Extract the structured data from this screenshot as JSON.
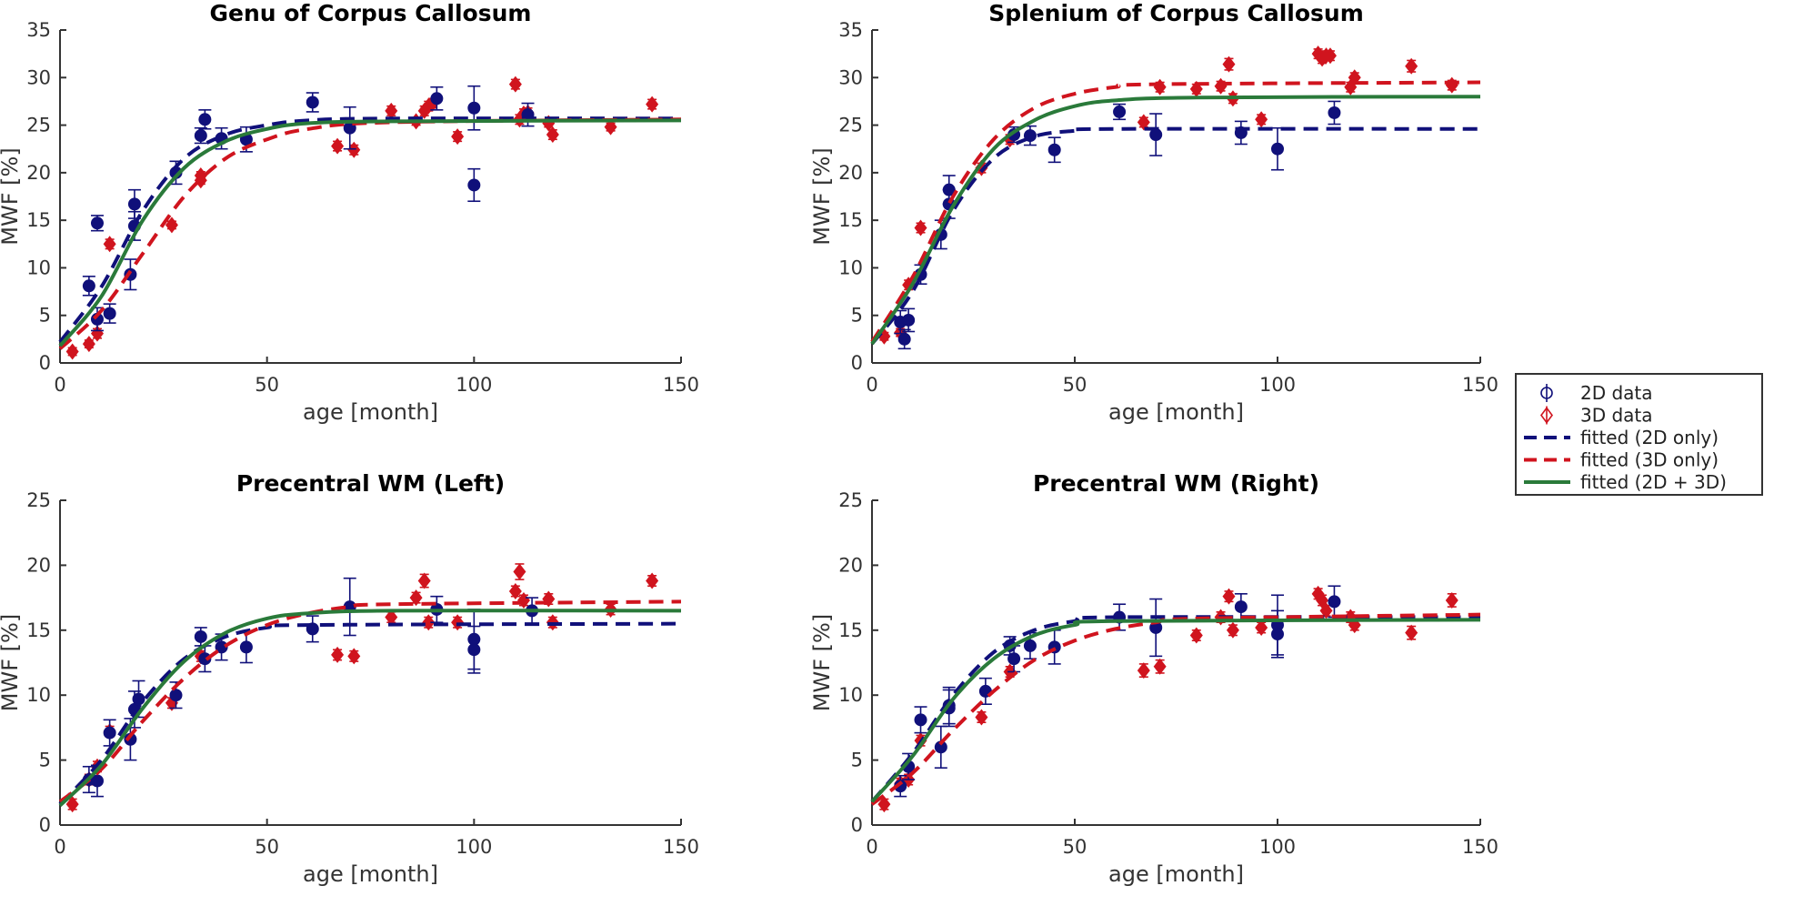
{
  "colors": {
    "data_2d": "#10107a",
    "data_3d": "#d0141e",
    "fit_2d": "#10107a",
    "fit_3d": "#d0141e",
    "fit_both": "#2a7a3a"
  },
  "legend": {
    "placement": "right",
    "entries": [
      "2D data",
      "3D data",
      "fitted (2D only)",
      "fitted (3D only)",
      "fitted (2D + 3D)"
    ]
  },
  "chart_data": [
    {
      "type": "scatter",
      "title": "Genu of Corpus Callosum",
      "xlabel": "age [month]",
      "ylabel": "MWF [%]",
      "xlim": [
        0,
        150
      ],
      "ylim": [
        0,
        35
      ],
      "xticks": [
        "0",
        "50",
        "100",
        "150"
      ],
      "yticks": [
        "0",
        "5",
        "10",
        "15",
        "20",
        "25",
        "30",
        "35"
      ],
      "grid": false,
      "data_2d": [
        [
          7,
          8.1,
          1
        ],
        [
          9,
          14.7,
          0.8
        ],
        [
          9,
          4.6,
          1.2
        ],
        [
          12,
          5.2,
          1
        ],
        [
          17,
          9.3,
          1.6
        ],
        [
          18,
          16.7,
          1.5
        ],
        [
          18,
          14.4,
          1.5
        ],
        [
          28,
          20,
          1.2
        ],
        [
          34,
          23.9,
          0.8
        ],
        [
          35,
          25.6,
          1
        ],
        [
          39,
          23.6,
          1.1
        ],
        [
          45,
          23.5,
          1.3
        ],
        [
          61,
          27.4,
          1
        ],
        [
          70,
          24.7,
          2.2
        ],
        [
          91,
          27.8,
          1.2
        ],
        [
          100,
          26.8,
          2.3
        ],
        [
          100,
          18.7,
          1.7
        ],
        [
          113,
          26.1,
          1.2
        ]
      ],
      "data_3d": [
        [
          3,
          1.2,
          0.4
        ],
        [
          7,
          2,
          0.4
        ],
        [
          9,
          3.1,
          0.5
        ],
        [
          12,
          12.5,
          0.5
        ],
        [
          27,
          14.5,
          0.4
        ],
        [
          34,
          19.2,
          0.4
        ],
        [
          34,
          19.7,
          0.4
        ],
        [
          67,
          22.8,
          0.5
        ],
        [
          71,
          22.4,
          0.5
        ],
        [
          80,
          26.5,
          0.5
        ],
        [
          86,
          25.4,
          0.4
        ],
        [
          88,
          26.5,
          0.5
        ],
        [
          89,
          27,
          0.5
        ],
        [
          90,
          27.3,
          0.5
        ],
        [
          96,
          23.8,
          0.5
        ],
        [
          110,
          29.3,
          0.5
        ],
        [
          111,
          25.6,
          0.5
        ],
        [
          112,
          26.2,
          0.5
        ],
        [
          113,
          26.3,
          0.5
        ],
        [
          118,
          25.2,
          0.4
        ],
        [
          119,
          24,
          0.5
        ],
        [
          133,
          24.8,
          0.4
        ],
        [
          143,
          27.2,
          0.5
        ]
      ],
      "fit_2d": [
        [
          0,
          2.2
        ],
        [
          10,
          8
        ],
        [
          20,
          16
        ],
        [
          30,
          21.5
        ],
        [
          40,
          24
        ],
        [
          50,
          25
        ],
        [
          60,
          25.5
        ],
        [
          80,
          25.7
        ],
        [
          150,
          25.7
        ]
      ],
      "fit_3d": [
        [
          0,
          1.5
        ],
        [
          10,
          5.5
        ],
        [
          20,
          11.5
        ],
        [
          30,
          17.5
        ],
        [
          40,
          21.5
        ],
        [
          50,
          23.5
        ],
        [
          60,
          24.6
        ],
        [
          80,
          25.3
        ],
        [
          150,
          25.6
        ]
      ],
      "fit_both": [
        [
          0,
          1.8
        ],
        [
          10,
          7
        ],
        [
          20,
          15
        ],
        [
          30,
          20.5
        ],
        [
          40,
          23.3
        ],
        [
          50,
          24.6
        ],
        [
          60,
          25.2
        ],
        [
          80,
          25.4
        ],
        [
          150,
          25.5
        ]
      ]
    },
    {
      "type": "scatter",
      "title": "Splenium of Corpus Callosum",
      "xlabel": "age [month]",
      "ylabel": "MWF [%]",
      "xlim": [
        0,
        150
      ],
      "ylim": [
        0,
        35
      ],
      "xticks": [
        "0",
        "50",
        "100",
        "150"
      ],
      "yticks": [
        "0",
        "5",
        "10",
        "15",
        "20",
        "25",
        "30",
        "35"
      ],
      "grid": false,
      "data_2d": [
        [
          7,
          4.3,
          1.2
        ],
        [
          8,
          2.5,
          1
        ],
        [
          9,
          4.5,
          1.2
        ],
        [
          12,
          9.3,
          1
        ],
        [
          17,
          13.5,
          1.5
        ],
        [
          19,
          18.2,
          1.5
        ],
        [
          19,
          16.7,
          1.5
        ],
        [
          35,
          24,
          0.8
        ],
        [
          39,
          23.9,
          1
        ],
        [
          45,
          22.4,
          1.3
        ],
        [
          61,
          26.4,
          0.8
        ],
        [
          70,
          24,
          2.2
        ],
        [
          91,
          24.2,
          1.2
        ],
        [
          100,
          22.5,
          2.2
        ],
        [
          114,
          26.3,
          1.2
        ]
      ],
      "data_3d": [
        [
          3,
          2.8,
          0.4
        ],
        [
          7,
          3.2,
          0.4
        ],
        [
          9,
          8.2,
          0.5
        ],
        [
          12,
          14.2,
          0.5
        ],
        [
          27,
          20.5,
          0.5
        ],
        [
          34,
          23.5,
          0.5
        ],
        [
          67,
          25.3,
          0.5
        ],
        [
          71,
          29,
          0.5
        ],
        [
          80,
          28.8,
          0.5
        ],
        [
          86,
          29.1,
          0.5
        ],
        [
          88,
          31.4,
          0.6
        ],
        [
          89,
          27.8,
          0.5
        ],
        [
          96,
          25.6,
          0.5
        ],
        [
          110,
          32.5,
          0.5
        ],
        [
          111,
          32,
          0.5
        ],
        [
          112,
          32.3,
          0.5
        ],
        [
          113,
          32.3,
          0.5
        ],
        [
          118,
          29,
          0.5
        ],
        [
          119,
          30,
          0.5
        ],
        [
          133,
          31.2,
          0.6
        ],
        [
          143,
          29.2,
          0.5
        ]
      ],
      "fit_2d": [
        [
          0,
          2
        ],
        [
          10,
          7.5
        ],
        [
          20,
          16
        ],
        [
          30,
          21.5
        ],
        [
          40,
          23.8
        ],
        [
          50,
          24.4
        ],
        [
          60,
          24.6
        ],
        [
          150,
          24.6
        ]
      ],
      "fit_3d": [
        [
          0,
          2.2
        ],
        [
          10,
          9
        ],
        [
          20,
          17.5
        ],
        [
          30,
          23.5
        ],
        [
          40,
          26.8
        ],
        [
          50,
          28.3
        ],
        [
          60,
          29
        ],
        [
          70,
          29.3
        ],
        [
          150,
          29.5
        ]
      ],
      "fit_both": [
        [
          0,
          2
        ],
        [
          10,
          8.3
        ],
        [
          20,
          16.5
        ],
        [
          30,
          22.5
        ],
        [
          40,
          25.5
        ],
        [
          50,
          27
        ],
        [
          60,
          27.6
        ],
        [
          80,
          27.9
        ],
        [
          150,
          28
        ]
      ]
    },
    {
      "type": "scatter",
      "title": "Precentral WM (Left)",
      "xlabel": "age [month]",
      "ylabel": "MWF [%]",
      "xlim": [
        0,
        150
      ],
      "ylim": [
        0,
        25
      ],
      "xticks": [
        "0",
        "50",
        "100",
        "150"
      ],
      "yticks": [
        "0",
        "5",
        "10",
        "15",
        "20",
        "25"
      ],
      "grid": false,
      "data_2d": [
        [
          7,
          3.5,
          1
        ],
        [
          9,
          3.4,
          1.2
        ],
        [
          12,
          7.1,
          1
        ],
        [
          17,
          6.6,
          1.6
        ],
        [
          18,
          8.9,
          1.4
        ],
        [
          19,
          9.7,
          1.4
        ],
        [
          28,
          10,
          1
        ],
        [
          34,
          14.5,
          0.7
        ],
        [
          35,
          12.8,
          1
        ],
        [
          39,
          13.7,
          1
        ],
        [
          45,
          13.7,
          1.2
        ],
        [
          61,
          15.1,
          1
        ],
        [
          70,
          16.8,
          2.2
        ],
        [
          91,
          16.6,
          1
        ],
        [
          100,
          14.3,
          2.3
        ],
        [
          100,
          13.5,
          1.8
        ],
        [
          114,
          16.5,
          1
        ]
      ],
      "data_3d": [
        [
          3,
          1.6,
          0.4
        ],
        [
          7,
          3.5,
          0.4
        ],
        [
          9,
          4.5,
          0.4
        ],
        [
          12,
          7.2,
          0.4
        ],
        [
          27,
          9.4,
          0.4
        ],
        [
          34,
          13,
          0.4
        ],
        [
          67,
          13.1,
          0.4
        ],
        [
          71,
          13,
          0.4
        ],
        [
          80,
          16,
          0.4
        ],
        [
          86,
          17.5,
          0.4
        ],
        [
          88,
          18.8,
          0.5
        ],
        [
          89,
          15.6,
          0.4
        ],
        [
          96,
          15.6,
          0.4
        ],
        [
          110,
          18,
          0.4
        ],
        [
          111,
          19.5,
          0.6
        ],
        [
          112,
          17.3,
          0.4
        ],
        [
          118,
          17.4,
          0.4
        ],
        [
          119,
          15.6,
          0.4
        ],
        [
          133,
          16.6,
          0.4
        ],
        [
          143,
          18.8,
          0.4
        ]
      ],
      "fit_2d": [
        [
          0,
          1.6
        ],
        [
          10,
          5
        ],
        [
          20,
          9.5
        ],
        [
          30,
          12.8
        ],
        [
          40,
          14.5
        ],
        [
          50,
          15.2
        ],
        [
          60,
          15.4
        ],
        [
          150,
          15.5
        ]
      ],
      "fit_3d": [
        [
          0,
          1.8
        ],
        [
          10,
          4.3
        ],
        [
          20,
          8
        ],
        [
          30,
          11.3
        ],
        [
          40,
          13.8
        ],
        [
          50,
          15.4
        ],
        [
          60,
          16.3
        ],
        [
          70,
          16.8
        ],
        [
          80,
          17
        ],
        [
          150,
          17.2
        ]
      ],
      "fit_both": [
        [
          0,
          1.5
        ],
        [
          10,
          4.6
        ],
        [
          20,
          9
        ],
        [
          30,
          12.6
        ],
        [
          40,
          14.8
        ],
        [
          50,
          15.9
        ],
        [
          60,
          16.3
        ],
        [
          80,
          16.5
        ],
        [
          150,
          16.5
        ]
      ]
    },
    {
      "type": "scatter",
      "title": "Precentral WM (Right)",
      "xlabel": "age [month]",
      "ylabel": "MWF [%]",
      "xlim": [
        0,
        150
      ],
      "ylim": [
        0,
        25
      ],
      "xticks": [
        "0",
        "50",
        "100",
        "150"
      ],
      "yticks": [
        "0",
        "5",
        "10",
        "15",
        "20",
        "25"
      ],
      "grid": false,
      "data_2d": [
        [
          7,
          3,
          0.8
        ],
        [
          9,
          4.5,
          1
        ],
        [
          12,
          8.1,
          1
        ],
        [
          17,
          6,
          1.6
        ],
        [
          19,
          9.2,
          1.4
        ],
        [
          19,
          9,
          1.4
        ],
        [
          28,
          10.3,
          1
        ],
        [
          34,
          13.8,
          0.7
        ],
        [
          35,
          12.8,
          1
        ],
        [
          39,
          13.8,
          1
        ],
        [
          45,
          13.7,
          1.3
        ],
        [
          61,
          16,
          1
        ],
        [
          70,
          15.2,
          2.2
        ],
        [
          91,
          16.8,
          1
        ],
        [
          100,
          15.4,
          2.3
        ],
        [
          100,
          14.7,
          1.8
        ],
        [
          114,
          17.2,
          1.2
        ]
      ],
      "data_3d": [
        [
          3,
          1.6,
          0.4
        ],
        [
          7,
          3.2,
          0.4
        ],
        [
          9,
          3.5,
          0.4
        ],
        [
          12,
          6.5,
          0.4
        ],
        [
          27,
          8.3,
          0.4
        ],
        [
          34,
          11.8,
          0.4
        ],
        [
          67,
          11.9,
          0.5
        ],
        [
          71,
          12.2,
          0.5
        ],
        [
          80,
          14.6,
          0.4
        ],
        [
          86,
          16,
          0.4
        ],
        [
          88,
          17.6,
          0.4
        ],
        [
          89,
          15,
          0.4
        ],
        [
          96,
          15.2,
          0.4
        ],
        [
          110,
          17.8,
          0.4
        ],
        [
          111,
          17.3,
          0.4
        ],
        [
          112,
          16.5,
          0.4
        ],
        [
          118,
          16,
          0.4
        ],
        [
          119,
          15.4,
          0.4
        ],
        [
          133,
          14.8,
          0.5
        ],
        [
          143,
          17.3,
          0.5
        ]
      ],
      "fit_2d": [
        [
          0,
          1.8
        ],
        [
          10,
          5.5
        ],
        [
          20,
          10
        ],
        [
          30,
          13.3
        ],
        [
          40,
          15
        ],
        [
          50,
          15.7
        ],
        [
          60,
          16
        ],
        [
          150,
          16
        ]
      ],
      "fit_3d": [
        [
          0,
          1.6
        ],
        [
          10,
          4
        ],
        [
          20,
          7.3
        ],
        [
          30,
          10.3
        ],
        [
          40,
          12.7
        ],
        [
          50,
          14.2
        ],
        [
          60,
          15.1
        ],
        [
          70,
          15.6
        ],
        [
          80,
          15.9
        ],
        [
          150,
          16.2
        ]
      ],
      "fit_both": [
        [
          0,
          1.8
        ],
        [
          10,
          5.3
        ],
        [
          20,
          9.7
        ],
        [
          30,
          12.8
        ],
        [
          40,
          14.6
        ],
        [
          50,
          15.4
        ],
        [
          60,
          15.7
        ],
        [
          150,
          15.8
        ]
      ]
    }
  ]
}
